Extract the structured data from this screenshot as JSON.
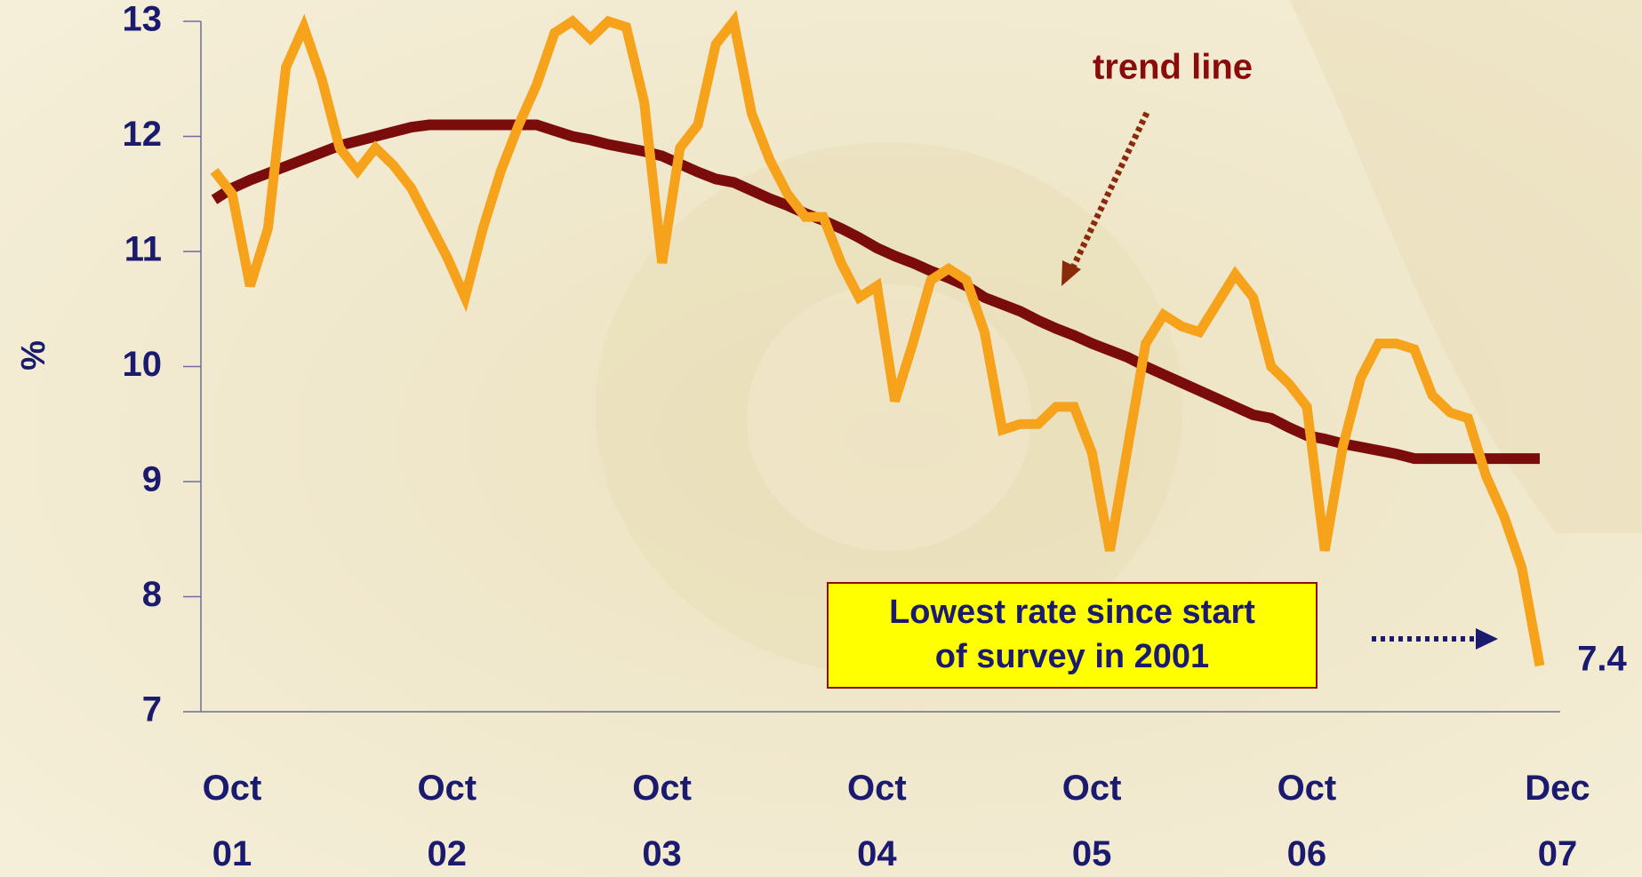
{
  "chart_data": {
    "type": "line",
    "y_label": "%",
    "categories": [
      "Oct 01",
      null,
      null,
      null,
      null,
      null,
      null,
      null,
      null,
      null,
      null,
      null,
      "Oct 02",
      null,
      null,
      null,
      null,
      null,
      null,
      null,
      null,
      null,
      null,
      null,
      "Oct 03",
      null,
      null,
      null,
      null,
      null,
      null,
      null,
      null,
      null,
      null,
      null,
      "Oct 04",
      null,
      null,
      null,
      null,
      null,
      null,
      null,
      null,
      null,
      null,
      null,
      "Oct 05",
      null,
      null,
      null,
      null,
      null,
      null,
      null,
      null,
      null,
      null,
      null,
      "Oct 06",
      null,
      null,
      null,
      null,
      null,
      null,
      null,
      null,
      null,
      null,
      null,
      null,
      null,
      "Dec 07"
    ],
    "series": [
      {
        "color": "#f7a21b",
        "values": [
          11.7,
          11.5,
          10.7,
          11.2,
          12.6,
          12.95,
          12.5,
          11.9,
          11.7,
          11.9,
          11.75,
          11.55,
          11.25,
          10.95,
          10.6,
          11.2,
          11.7,
          12.1,
          12.45,
          12.9,
          13.0,
          12.85,
          13.0,
          12.95,
          12.3,
          10.9,
          11.9,
          12.1,
          12.8,
          13.0,
          12.2,
          11.8,
          11.5,
          11.3,
          11.3,
          10.9,
          10.6,
          10.7,
          9.7,
          10.2,
          10.75,
          10.85,
          10.75,
          10.3,
          9.45,
          9.5,
          9.5,
          9.65,
          9.65,
          9.25,
          8.4,
          9.3,
          10.2,
          10.45,
          10.35,
          10.3,
          10.55,
          10.8,
          10.6,
          10.0,
          9.85,
          9.65,
          8.4,
          9.3,
          9.9,
          10.2,
          10.2,
          10.15,
          9.75,
          9.6,
          9.55,
          9.05,
          8.7,
          8.25,
          7.4
        ]
      },
      {
        "name": "trend line",
        "color": "#7b0c0c",
        "values": [
          11.45,
          11.55,
          11.62,
          11.68,
          11.74,
          11.8,
          11.86,
          11.92,
          11.96,
          12.0,
          12.04,
          12.08,
          12.1,
          12.1,
          12.1,
          12.1,
          12.1,
          12.1,
          12.1,
          12.05,
          12.0,
          11.97,
          11.93,
          11.9,
          11.87,
          11.83,
          11.76,
          11.69,
          11.63,
          11.6,
          11.53,
          11.46,
          11.4,
          11.33,
          11.27,
          11.2,
          11.12,
          11.03,
          10.96,
          10.9,
          10.83,
          10.77,
          10.7,
          10.6,
          10.54,
          10.48,
          10.4,
          10.33,
          10.27,
          10.2,
          10.14,
          10.08,
          10.0,
          9.93,
          9.86,
          9.79,
          9.72,
          9.65,
          9.58,
          9.55,
          9.47,
          9.4,
          9.37,
          9.33,
          9.3,
          9.27,
          9.24,
          9.2,
          9.2,
          9.2,
          9.2,
          9.2,
          9.2,
          9.2,
          9.2
        ]
      }
    ],
    "annotation": "Lowest rate since start of survey in 2001",
    "ylim": [
      7,
      13
    ],
    "yticks": [
      7,
      8,
      9,
      10,
      11,
      12,
      13
    ]
  }
}
